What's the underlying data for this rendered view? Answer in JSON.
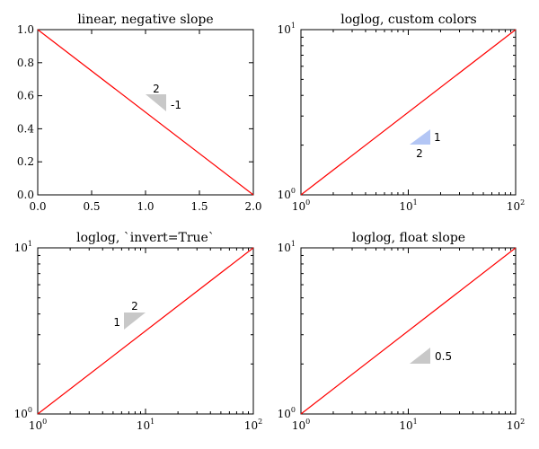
{
  "chart_data": [
    {
      "type": "line",
      "title": "linear, negative slope",
      "xscale": "linear",
      "yscale": "linear",
      "xlim": [
        0,
        2
      ],
      "ylim": [
        0,
        1
      ],
      "xticks": [
        "0.0",
        "0.5",
        "1.0",
        "1.5",
        "2.0"
      ],
      "yticks": [
        "0.0",
        "0.2",
        "0.4",
        "0.6",
        "0.8",
        "1.0"
      ],
      "series": [
        {
          "x": [
            0,
            2
          ],
          "y": [
            1,
            0
          ],
          "color": "#ff0000"
        }
      ],
      "slope_marker": {
        "slope_label": "-1",
        "run_label": "2",
        "color": "#c8c8c8",
        "text_color": "#000000",
        "invert": false
      }
    },
    {
      "type": "line",
      "title": "loglog, custom colors",
      "xscale": "log",
      "yscale": "log",
      "xlim": [
        1,
        100
      ],
      "ylim": [
        1,
        10
      ],
      "series": [
        {
          "x": [
            1,
            100
          ],
          "y": [
            1,
            10
          ],
          "color": "#ff0000"
        }
      ],
      "slope_marker": {
        "slope_label": "1",
        "run_label": "2",
        "color": "#b3c6f5",
        "text_color": "#6688dd",
        "invert": false
      }
    },
    {
      "type": "line",
      "title": "loglog, `invert=True`",
      "xscale": "log",
      "yscale": "log",
      "xlim": [
        1,
        100
      ],
      "ylim": [
        1,
        10
      ],
      "series": [
        {
          "x": [
            1,
            100
          ],
          "y": [
            1,
            10
          ],
          "color": "#ff0000"
        }
      ],
      "slope_marker": {
        "slope_label": "1",
        "run_label": "2",
        "color": "#c8c8c8",
        "text_color": "#000000",
        "invert": true
      }
    },
    {
      "type": "line",
      "title": "loglog, float slope",
      "xscale": "log",
      "yscale": "log",
      "xlim": [
        1,
        100
      ],
      "ylim": [
        1,
        10
      ],
      "series": [
        {
          "x": [
            1,
            100
          ],
          "y": [
            1,
            10
          ],
          "color": "#ff0000"
        }
      ],
      "slope_marker": {
        "slope_label": "0.5",
        "run_label": "",
        "color": "#c8c8c8",
        "text_color": "#000000",
        "invert": false
      }
    }
  ]
}
